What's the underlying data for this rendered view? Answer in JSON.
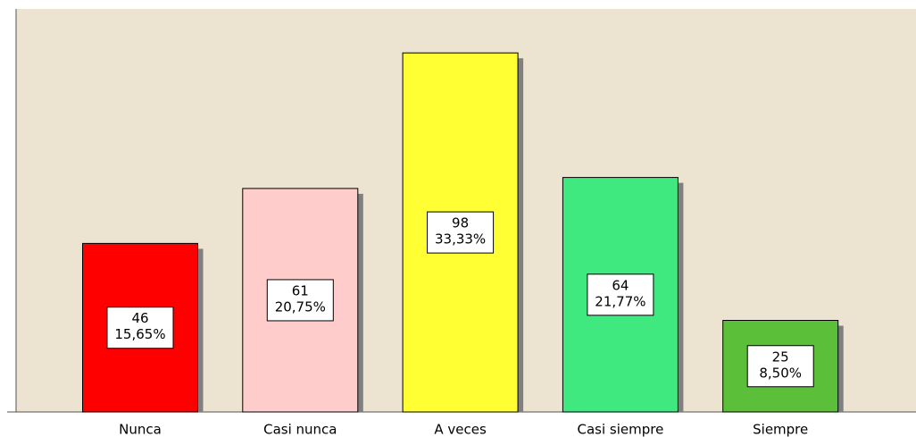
{
  "chart_data": {
    "type": "bar",
    "categories": [
      "Nunca",
      "Casi nunca",
      "A veces",
      "Casi siempre",
      "Siempre"
    ],
    "values": [
      46,
      61,
      98,
      64,
      25
    ],
    "percent_values": [
      15.65,
      20.75,
      33.33,
      21.77,
      8.5
    ],
    "percent_labels": [
      "15,65%",
      "20,75%",
      "33,33%",
      "21,77%",
      "8,50%"
    ],
    "colors": [
      "#ff0000",
      "#ffcccc",
      "#ffff33",
      "#40e880",
      "#5cbf3a"
    ],
    "ylim": [
      0,
      110
    ]
  }
}
